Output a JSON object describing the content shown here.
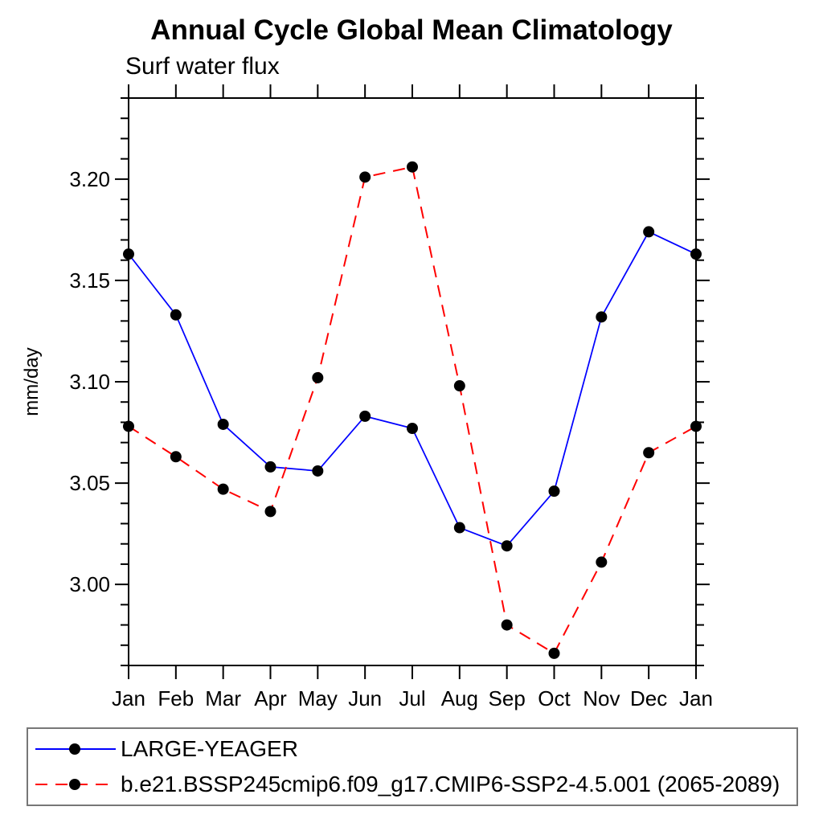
{
  "chart": {
    "title": "Annual Cycle Global Mean Climatology",
    "subtitle": "Surf water flux"
  },
  "chart_data": {
    "type": "line",
    "title": "Annual Cycle Global Mean Climatology",
    "subtitle": "Surf water flux",
    "xlabel": "",
    "ylabel": "mm/day",
    "categories": [
      "Jan",
      "Feb",
      "Mar",
      "Apr",
      "May",
      "Jun",
      "Jul",
      "Aug",
      "Sep",
      "Oct",
      "Nov",
      "Dec",
      "Jan"
    ],
    "series": [
      {
        "name": "LARGE-YEAGER",
        "color": "#0000ff",
        "line_style": "solid",
        "marker": "filled-circle",
        "marker_color": "#000000",
        "values": [
          3.163,
          3.133,
          3.079,
          3.058,
          3.056,
          3.083,
          3.077,
          3.028,
          3.019,
          3.046,
          3.132,
          3.174,
          3.163
        ]
      },
      {
        "name": "b.e21.BSSP245cmip6.f09_g17.CMIP6-SSP2-4.5.001 (2065-2089)",
        "color": "#ff0000",
        "line_style": "dashed",
        "marker": "filled-circle",
        "marker_color": "#000000",
        "values": [
          3.078,
          3.063,
          3.047,
          3.036,
          3.102,
          3.201,
          3.206,
          3.098,
          2.98,
          2.966,
          3.011,
          3.065,
          3.078
        ]
      }
    ],
    "ylim": [
      2.96,
      3.24
    ],
    "ytick_major": [
      3.0,
      3.05,
      3.1,
      3.15,
      3.2
    ],
    "ytick_labels": [
      "3.00",
      "3.05",
      "3.10",
      "3.15",
      "3.20"
    ],
    "ytick_minor_step": 0.01,
    "grid": false,
    "legend_position": "bottom",
    "axis_color": "#000000"
  }
}
